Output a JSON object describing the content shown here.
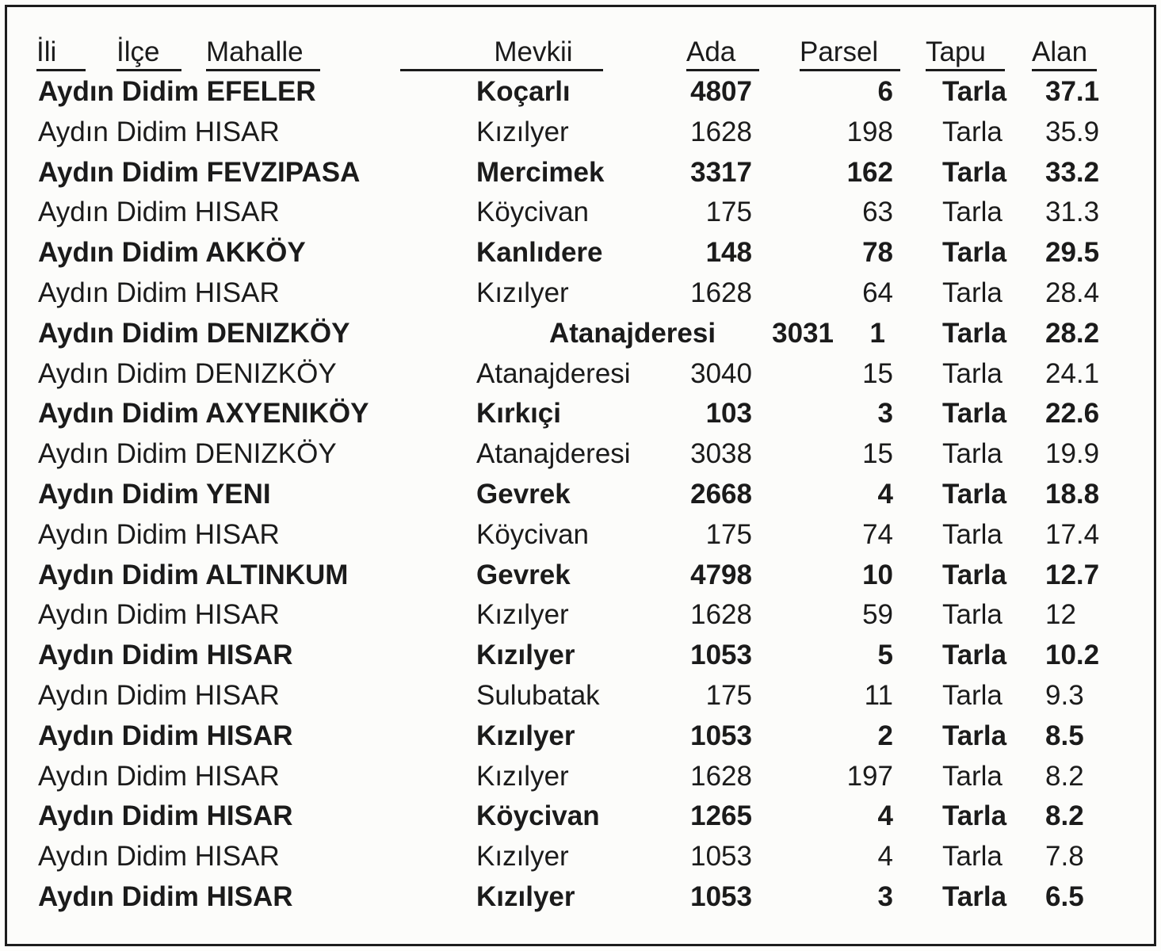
{
  "colors": {
    "text": "#1b1b1b",
    "border": "#1d1d1d",
    "background": "#fcfcfa"
  },
  "table": {
    "headers": {
      "ili": "İli",
      "ilce": "İlçe",
      "mahalle": "Mahalle",
      "mevkii": "Mevkii",
      "ada": "Ada",
      "parsel": "Parsel",
      "tapu": "Tapu",
      "alan": "Alan"
    },
    "rows": [
      {
        "ili": "Aydın",
        "ilce": "Didim",
        "mahalle": "EFELER",
        "mevkii": "Koçarlı",
        "ada": "4807",
        "parsel": "6",
        "tapu": "Tarla",
        "alan": "37.1",
        "bold": true
      },
      {
        "ili": "Aydın",
        "ilce": "Didim",
        "mahalle": "HISAR",
        "mevkii": "Kızılyer",
        "ada": "1628",
        "parsel": "198",
        "tapu": "Tarla",
        "alan": "35.9",
        "bold": false
      },
      {
        "ili": "Aydın",
        "ilce": "Didim",
        "mahalle": "FEVZIPASA",
        "mevkii": "Mercimek",
        "ada": "3317",
        "parsel": "162",
        "tapu": "Tarla",
        "alan": "33.2",
        "bold": true
      },
      {
        "ili": "Aydın",
        "ilce": "Didim",
        "mahalle": "HISAR",
        "mevkii": "Köycivan",
        "ada": "175",
        "parsel": "63",
        "tapu": "Tarla",
        "alan": "31.3",
        "bold": false
      },
      {
        "ili": "Aydın",
        "ilce": "Didim",
        "mahalle": "AKKÖY",
        "mevkii": "Kanlıdere",
        "ada": "148",
        "parsel": "78",
        "tapu": "Tarla",
        "alan": "29.5",
        "bold": true
      },
      {
        "ili": "Aydın",
        "ilce": "Didim",
        "mahalle": "HISAR",
        "mevkii": "Kızılyer",
        "ada": "1628",
        "parsel": "64",
        "tapu": "Tarla",
        "alan": "28.4",
        "bold": false
      },
      {
        "ili": "Aydın",
        "ilce": "Didim",
        "mahalle": "DENIZKÖY",
        "mevkii": "Atanajderesi",
        "ada": "3031",
        "parsel": "1",
        "tapu": "Tarla",
        "alan": "28.2",
        "bold": true
      },
      {
        "ili": "Aydın",
        "ilce": "Didim",
        "mahalle": "DENIZKÖY",
        "mevkii": "Atanajderesi",
        "ada": "3040",
        "parsel": "15",
        "tapu": "Tarla",
        "alan": "24.1",
        "bold": false
      },
      {
        "ili": "Aydın",
        "ilce": "Didim",
        "mahalle": "AXYENIKÖY",
        "mevkii": "Kırkıçi",
        "ada": "103",
        "parsel": "3",
        "tapu": "Tarla",
        "alan": "22.6",
        "bold": true
      },
      {
        "ili": "Aydın",
        "ilce": "Didim",
        "mahalle": "DENIZKÖY",
        "mevkii": "Atanajderesi",
        "ada": "3038",
        "parsel": "15",
        "tapu": "Tarla",
        "alan": "19.9",
        "bold": false
      },
      {
        "ili": "Aydın",
        "ilce": "Didim",
        "mahalle": "YENI",
        "mevkii": "Gevrek",
        "ada": "2668",
        "parsel": "4",
        "tapu": "Tarla",
        "alan": "18.8",
        "bold": true
      },
      {
        "ili": "Aydın",
        "ilce": "Didim",
        "mahalle": "HISAR",
        "mevkii": "Köycivan",
        "ada": "175",
        "parsel": "74",
        "tapu": "Tarla",
        "alan": "17.4",
        "bold": false
      },
      {
        "ili": "Aydın",
        "ilce": "Didim",
        "mahalle": "ALTINKUM",
        "mevkii": "Gevrek",
        "ada": "4798",
        "parsel": "10",
        "tapu": "Tarla",
        "alan": "12.7",
        "bold": true
      },
      {
        "ili": "Aydın",
        "ilce": "Didim",
        "mahalle": "HISAR",
        "mevkii": "Kızılyer",
        "ada": "1628",
        "parsel": "59",
        "tapu": "Tarla",
        "alan": "12",
        "bold": false
      },
      {
        "ili": "Aydın",
        "ilce": "Didim",
        "mahalle": "HISAR",
        "mevkii": "Kızılyer",
        "ada": "1053",
        "parsel": "5",
        "tapu": "Tarla",
        "alan": "10.2",
        "bold": true
      },
      {
        "ili": "Aydın",
        "ilce": "Didim",
        "mahalle": "HISAR",
        "mevkii": "Sulubatak",
        "ada": "175",
        "parsel": "11",
        "tapu": "Tarla",
        "alan": "9.3",
        "bold": false
      },
      {
        "ili": "Aydın",
        "ilce": "Didim",
        "mahalle": "HISAR",
        "mevkii": "Kızılyer",
        "ada": "1053",
        "parsel": "2",
        "tapu": "Tarla",
        "alan": "8.5",
        "bold": true
      },
      {
        "ili": "Aydın",
        "ilce": "Didim",
        "mahalle": "HISAR",
        "mevkii": "Kızılyer",
        "ada": "1628",
        "parsel": "197",
        "tapu": "Tarla",
        "alan": "8.2",
        "bold": false
      },
      {
        "ili": "Aydın",
        "ilce": "Didim",
        "mahalle": "HISAR",
        "mevkii": "Köycivan",
        "ada": "1265",
        "parsel": "4",
        "tapu": "Tarla",
        "alan": "8.2",
        "bold": true
      },
      {
        "ili": "Aydın",
        "ilce": "Didim",
        "mahalle": "HISAR",
        "mevkii": "Kızılyer",
        "ada": "1053",
        "parsel": "4",
        "tapu": "Tarla",
        "alan": "7.8",
        "bold": false
      },
      {
        "ili": "Aydın",
        "ilce": "Didim",
        "mahalle": "HISAR",
        "mevkii": "Kızılyer",
        "ada": "1053",
        "parsel": "3",
        "tapu": "Tarla",
        "alan": "6.5",
        "bold": true
      }
    ]
  }
}
